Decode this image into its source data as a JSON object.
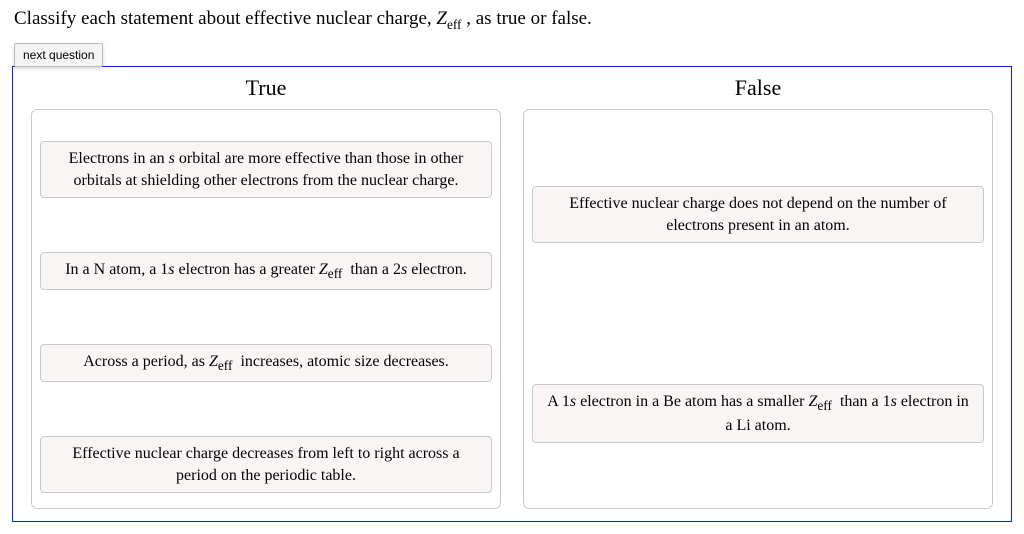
{
  "prompt_prefix": "Classify each statement about effective nuclear charge, ",
  "prompt_symbol_html": "Z<sub>eff</sub>",
  "prompt_suffix": " , as true or false.",
  "next_button_label": "next question",
  "columns": {
    "true_label": "True",
    "false_label": "False"
  },
  "true_cards": [
    {
      "html": "Electrons in an <span class='it'>s</span> orbital are more effective than those in other orbitals at shielding other electrons from the nuclear charge."
    },
    {
      "html": "In a N atom, a 1<span class='it'>s</span> electron has a greater <span class='it'>Z</span><sub>eff</sub>&nbsp; than a 2<span class='it'>s</span> electron."
    },
    {
      "html": "Across a period, as <span class='it'>Z</span><sub>eff</sub>&nbsp; increases, atomic size decreases."
    },
    {
      "html": "Effective nuclear charge decreases from left to right across a period on the periodic table."
    }
  ],
  "false_cards": [
    {
      "html": "Effective nuclear charge does not depend on the number of electrons present in an atom."
    },
    {
      "html": "A 1<span class='it'>s</span> electron in a Be atom has a smaller <span class='it'>Z</span><sub>eff</sub>&nbsp; than a 1<span class='it'>s</span> electron in a Li atom."
    }
  ],
  "layout": {
    "true_spacers": [
      0.6,
      1,
      1,
      1,
      0.2
    ],
    "false_spacers_top": 1.2,
    "false_spacers_mid": 2.2,
    "false_spacers_bot": 1.0
  },
  "styling": {
    "panel_border_color": "#1020e0",
    "card_bg": "#faf5f5",
    "card_border": "#c9c9c9",
    "dropzone_border": "#c9c9c9",
    "body_font": "Times New Roman",
    "button_font": "Arial"
  }
}
